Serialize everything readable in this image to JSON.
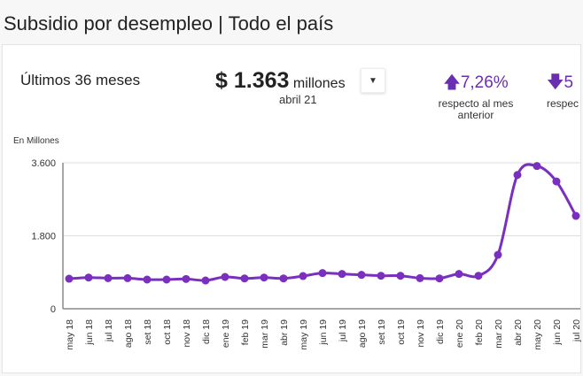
{
  "header": {
    "title": "Subsidio por desempleo | Todo el país"
  },
  "summary": {
    "period": "Últimos 36 meses",
    "amount": "$ 1.363",
    "amount_unit": "millones",
    "amount_date": "abril 21",
    "dropdown_icon": "caret-down-icon",
    "stats": [
      {
        "direction": "up",
        "icon": "arrow-up-icon",
        "value": "7,26%",
        "line1": "respecto al mes",
        "line2": "anterior"
      },
      {
        "direction": "down",
        "icon": "arrow-down-icon",
        "value": "5",
        "line1": "respec",
        "line2": ""
      }
    ]
  },
  "colors": {
    "series": "#7b2fbf",
    "accent": "#6a2fb0"
  },
  "chart_data": {
    "type": "line",
    "ylabel": "En Millones",
    "ylim": [
      0,
      3600
    ],
    "yticks": [
      "0",
      "1.800",
      "3.600"
    ],
    "ytick_values": [
      0,
      1800,
      3600
    ],
    "grid": true,
    "categories": [
      "may 18",
      "jun 18",
      "jul 18",
      "ago 18",
      "set 18",
      "oct 18",
      "nov 18",
      "dic 18",
      "ene 19",
      "feb 19",
      "mar 19",
      "abr 19",
      "may 19",
      "jun 19",
      "jul 19",
      "ago 19",
      "set 19",
      "oct 19",
      "nov 19",
      "dic 19",
      "ene 20",
      "feb 20",
      "mar 20",
      "abr 20",
      "may 20",
      "jun 20",
      "jul 20"
    ],
    "values": [
      741,
      770,
      755,
      755,
      720,
      720,
      735,
      698,
      785,
      748,
      770,
      748,
      807,
      880,
      858,
      836,
      814,
      814,
      755,
      748,
      858,
      814,
      1330,
      3300,
      3520,
      3140,
      2290
    ]
  }
}
